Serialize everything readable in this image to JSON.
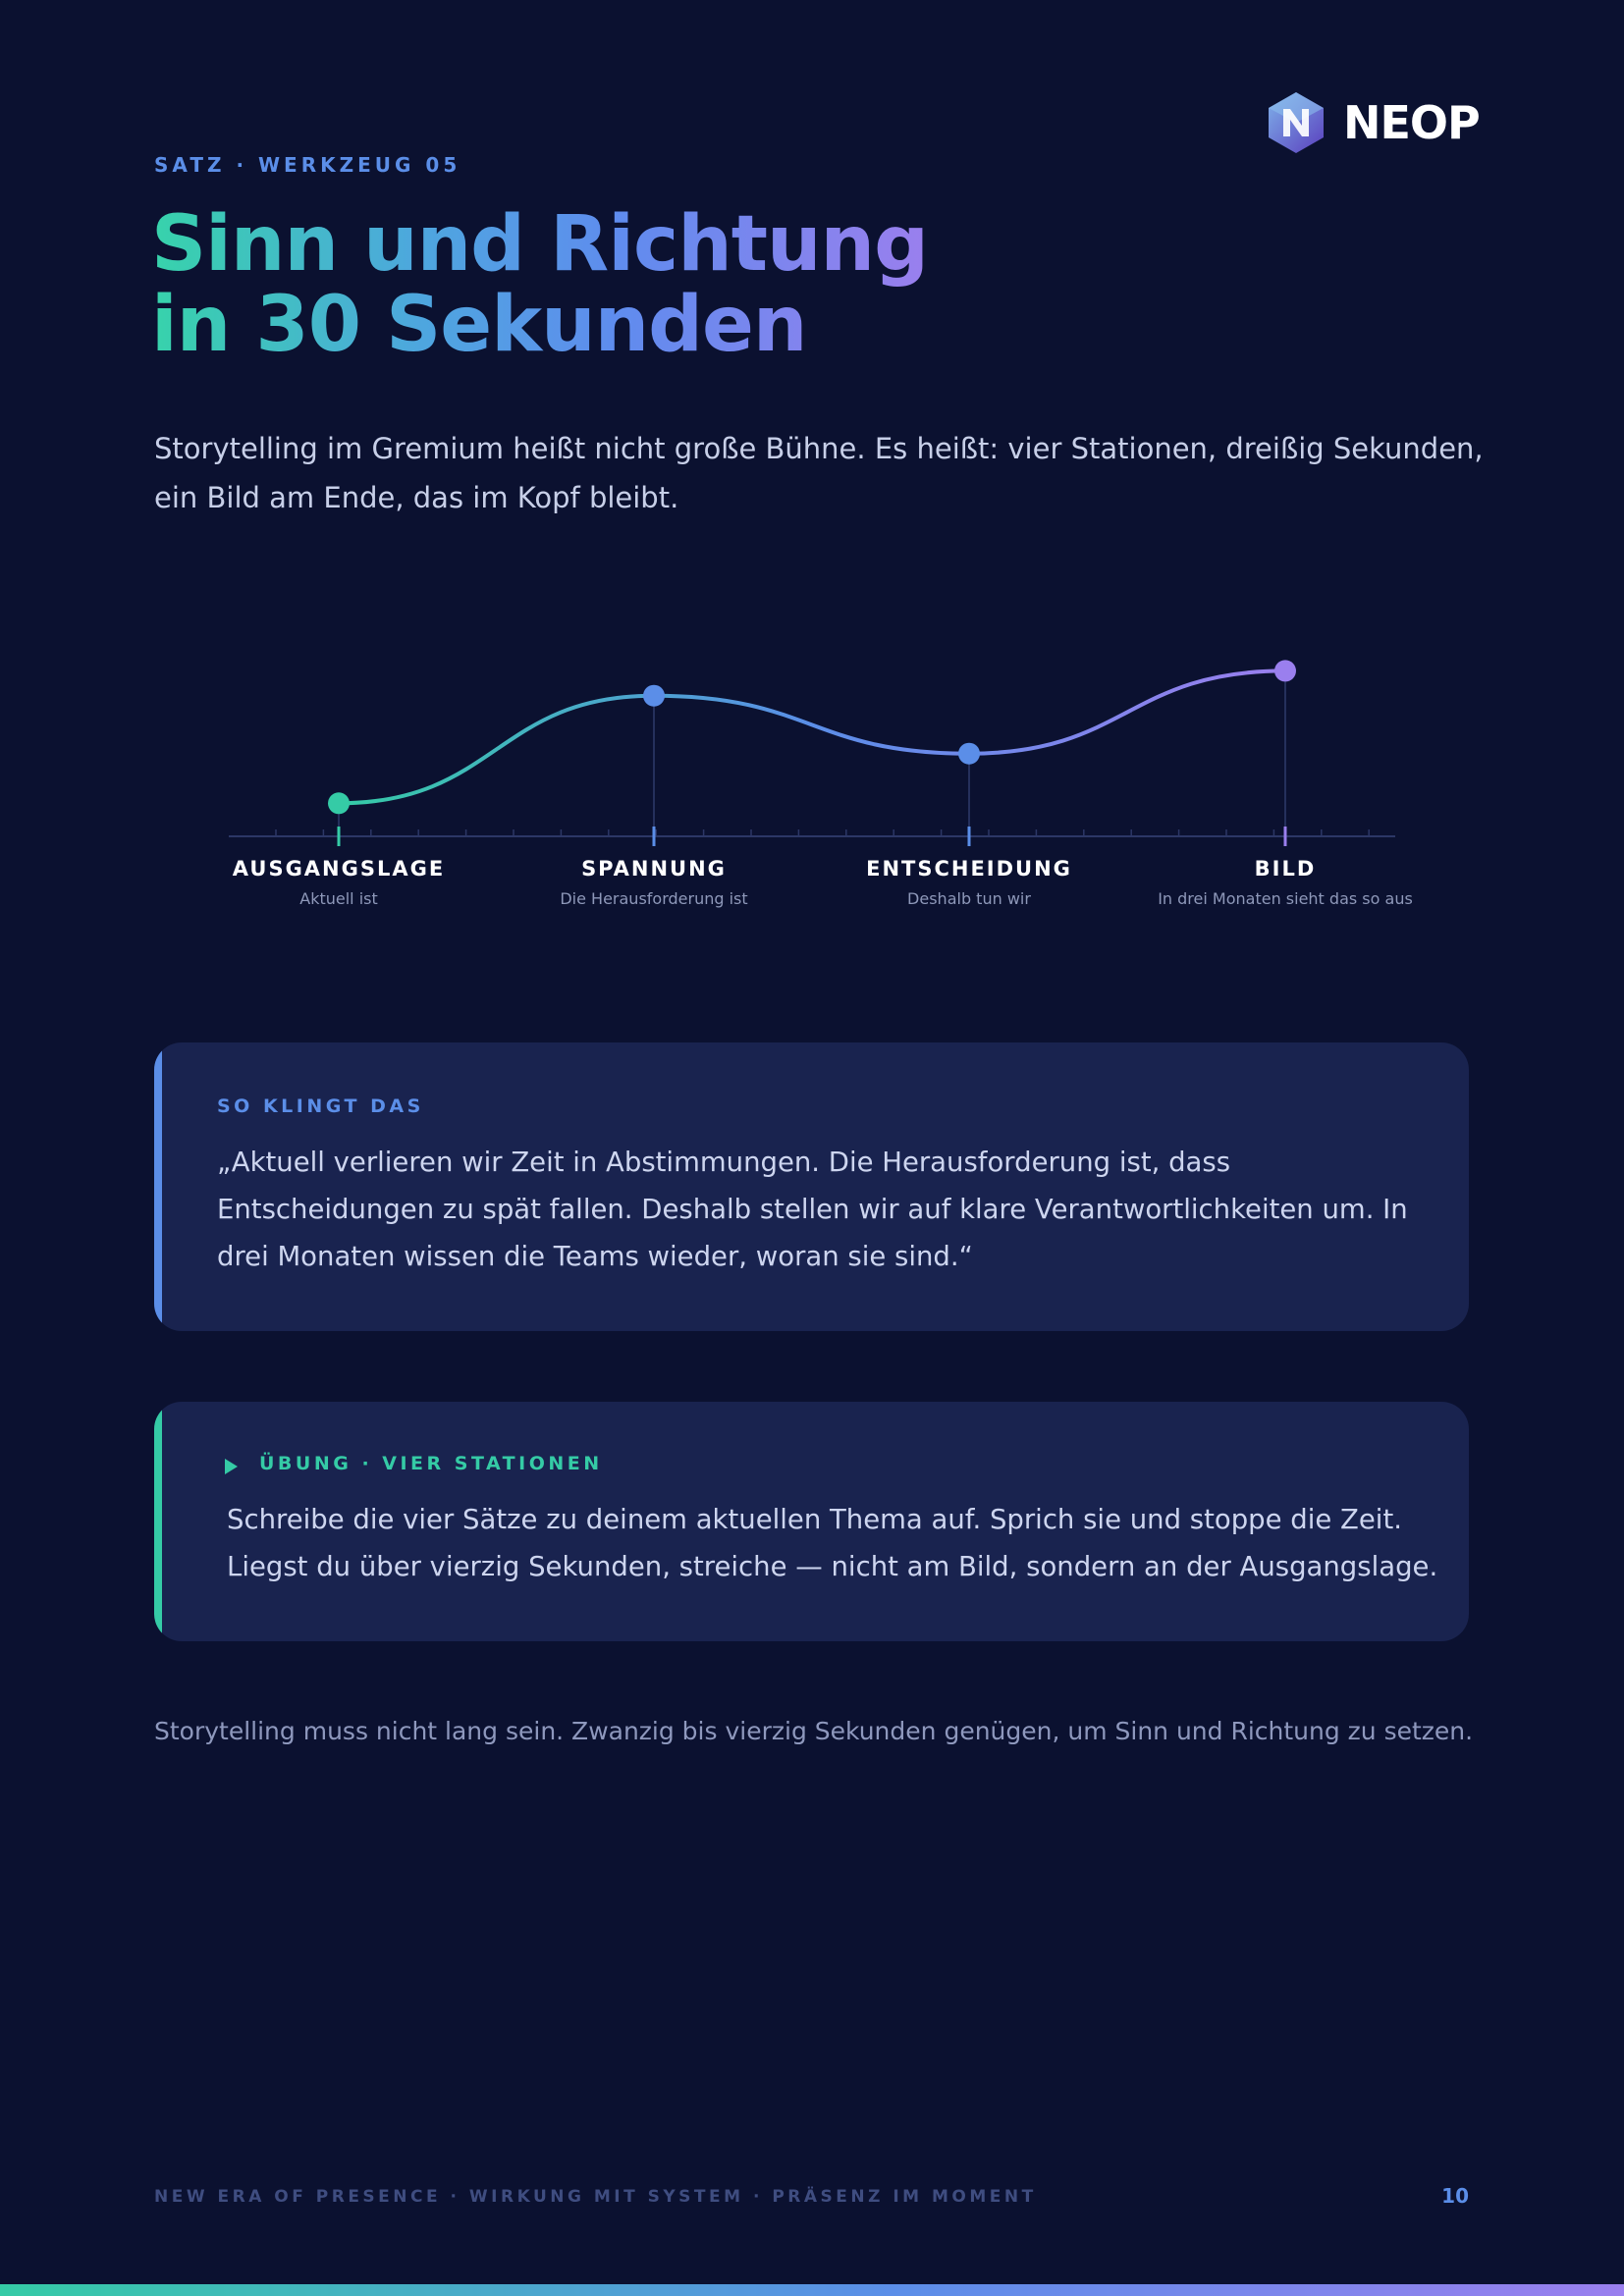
{
  "brand": {
    "name": "NEOP",
    "logo_icon": "hexagon-n-logo-icon"
  },
  "header": {
    "eyebrow": "SATZ · WERKZEUG 05",
    "title_line1": "Sinn und Richtung",
    "title_line2": "in 30 Sekunden"
  },
  "intro": "Storytelling im Gremium heißt nicht große Bühne. Es heißt: vier Stationen, dreißig Sekunden, ein Bild am Ende, das im Kopf bleibt.",
  "chart_data": {
    "type": "line",
    "x": [
      1,
      2,
      3,
      4
    ],
    "values": [
      0.2,
      0.85,
      0.5,
      1.0
    ],
    "stations": [
      {
        "label": "AUSGANGSLAGE",
        "sub": "Aktuell ist",
        "color": "#35cba6"
      },
      {
        "label": "SPANNUNG",
        "sub": "Die Herausforderung ist",
        "color": "#5b8ee8"
      },
      {
        "label": "ENTSCHEIDUNG",
        "sub": "Deshalb tun wir",
        "color": "#5b8ee8"
      },
      {
        "label": "BILD",
        "sub": "In drei Monaten sieht das so aus",
        "color": "#9a7fee"
      }
    ],
    "ylim": [
      0,
      1.05
    ],
    "grid": false
  },
  "example": {
    "heading": "SO KLINGT DAS",
    "text": "„Aktuell verlieren wir Zeit in Abstimmungen. Die Herausforderung ist, dass Entscheidungen zu spät fallen. Deshalb stellen wir auf klare Verantwortlichkeiten um. In drei Monaten wissen die Teams wieder, woran sie sind.“"
  },
  "exercise": {
    "heading": "ÜBUNG · VIER STATIONEN",
    "icon": "play-triangle-icon",
    "text": "Schreibe die vier Sätze zu deinem aktuellen Thema auf. Sprich sie und stoppe die Zeit. Liegst du über vierzig Sekunden, streiche — nicht am Bild, sondern an der Ausgangslage."
  },
  "closing": "Storytelling muss nicht lang sein. Zwanzig bis vierzig Sekunden genügen, um Sinn und Richtung zu setzen.",
  "footer": {
    "tagline": "NEW ERA OF PRESENCE · WIRKUNG MIT SYSTEM · PRÄSENZ IM MOMENT",
    "page_number": "10"
  }
}
